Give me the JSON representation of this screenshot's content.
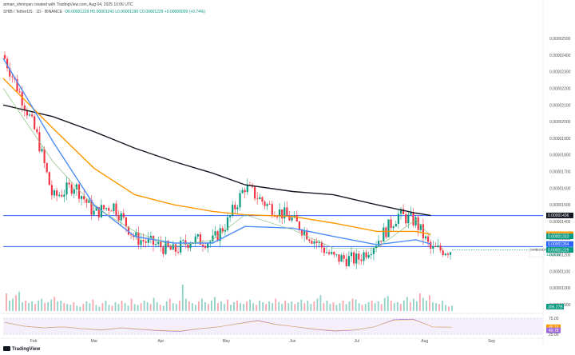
{
  "header": {
    "credit": "arman_shirinyan created with TradingView.com, Aug 04, 2025 10:06 UTC",
    "symbol": "SHIB / TetherUS · 1D · BINANCE",
    "ohlc": "O0.00001229 H0.00001243 L0.00001199 C0.00001229 +0.00000009 (+0.74%)"
  },
  "branding": {
    "text": "TradingView"
  },
  "colors": {
    "up": "#089981",
    "down": "#f23645",
    "ma_black": "#131722",
    "ma_orange": "#ff9800",
    "ma_blue": "#4e8df7",
    "ma_green": "#8bc17f",
    "hline": "#2962ff",
    "rsi": "#9c6ade",
    "rsi_band": "#ede4f8"
  },
  "chart_data": {
    "type": "candlestick",
    "price_axis_ticks": [
      "0.00002500",
      "0.00002400",
      "0.00002300",
      "0.00002200",
      "0.00002100",
      "0.00002000",
      "0.00001900",
      "0.00001800",
      "0.00001700",
      "0.00001600",
      "0.00001500",
      "0.00001400",
      "0.00001300",
      "0.00001200",
      "0.00001100",
      "0.00001000",
      "0.00000900"
    ],
    "time_axis_labels": [
      "Feb",
      "Mar",
      "Apr",
      "May",
      "Jun",
      "Jul",
      "Aug",
      "Sep"
    ],
    "rsi_axis_ticks": [
      "75.00",
      "46.74",
      "40.78",
      "25.00"
    ],
    "horizontal_lines": [
      1.435e-05,
      1.249e-05
    ],
    "price_labels": [
      {
        "text": "0.00001436",
        "value": 1.436e-05,
        "color": "#131722"
      },
      {
        "text": "0.00001323",
        "value": 1.323e-05,
        "color": "#ff9800"
      },
      {
        "text": "0.00001310",
        "value": 1.31e-05,
        "color": "#089981"
      },
      {
        "text": "0.00001264",
        "value": 1.264e-05,
        "color": "#2962ff"
      },
      {
        "text": "0.00001229",
        "value": 1.229e-05,
        "color": "#089981"
      }
    ],
    "current_price_tag": {
      "label": "SHIBUSDT",
      "countdown": "13:53:56",
      "value": 1.229e-05
    },
    "volume_label": "306.27B",
    "series": [
      {
        "name": "close",
        "y0": 2.4e-05,
        "x": [
          "2025-01-18",
          "2025-01-28",
          "2025-02-03",
          "2025-02-10",
          "2025-02-20",
          "2025-03-01",
          "2025-03-10",
          "2025-03-20",
          "2025-04-01",
          "2025-04-07",
          "2025-04-15",
          "2025-04-25",
          "2025-05-02",
          "2025-05-10",
          "2025-05-20",
          "2025-05-31",
          "2025-06-10",
          "2025-06-20",
          "2025-07-01",
          "2025-07-10",
          "2025-07-20",
          "2025-07-28",
          "2025-08-04"
        ],
        "values": [
          2.4e-05,
          2.1e-05,
          1.9e-05,
          1.54e-05,
          1.62e-05,
          1.45e-05,
          1.5e-05,
          1.3e-05,
          1.25e-05,
          1.22e-05,
          1.29e-05,
          1.28e-05,
          1.4e-05,
          1.61e-05,
          1.5e-05,
          1.42e-05,
          1.3e-05,
          1.18e-05,
          1.17e-05,
          1.28e-05,
          1.44e-05,
          1.4e-05,
          1.229e-05
        ]
      },
      {
        "name": "ma_black",
        "color": "#131722",
        "x": [
          "2025-01-18",
          "2025-02-10",
          "2025-03-01",
          "2025-03-20",
          "2025-04-07",
          "2025-04-25",
          "2025-05-10",
          "2025-06-01",
          "2025-06-20",
          "2025-07-10",
          "2025-07-28",
          "2025-08-04"
        ],
        "values": [
          2.1e-05,
          2.03e-05,
          1.94e-05,
          1.84e-05,
          1.76e-05,
          1.69e-05,
          1.62e-05,
          1.58e-05,
          1.56e-05,
          1.5e-05,
          1.45e-05,
          1.436e-05
        ]
      },
      {
        "name": "ma_orange",
        "color": "#ff9800",
        "x": [
          "2025-01-18",
          "2025-02-10",
          "2025-03-01",
          "2025-03-20",
          "2025-04-07",
          "2025-04-25",
          "2025-05-10",
          "2025-06-01",
          "2025-06-20",
          "2025-07-10",
          "2025-07-28",
          "2025-08-04"
        ],
        "values": [
          2.26e-05,
          1.96e-05,
          1.72e-05,
          1.56e-05,
          1.5e-05,
          1.46e-05,
          1.44e-05,
          1.43e-05,
          1.39e-05,
          1.34e-05,
          1.34e-05,
          1.323e-05
        ]
      },
      {
        "name": "ma_blue",
        "color": "#4e8df7",
        "x": [
          "2025-01-18",
          "2025-02-10",
          "2025-03-01",
          "2025-03-20",
          "2025-04-07",
          "2025-04-25",
          "2025-05-10",
          "2025-06-01",
          "2025-06-20",
          "2025-07-10",
          "2025-07-28",
          "2025-08-04"
        ],
        "values": [
          2.38e-05,
          1.88e-05,
          1.5e-05,
          1.31e-05,
          1.27e-05,
          1.27e-05,
          1.37e-05,
          1.36e-05,
          1.31e-05,
          1.26e-05,
          1.29e-05,
          1.264e-05
        ]
      },
      {
        "name": "ma_green",
        "color": "#8bc17f",
        "x": [
          "2025-01-18",
          "2025-02-10",
          "2025-03-01",
          "2025-03-20",
          "2025-04-07",
          "2025-04-25",
          "2025-05-10",
          "2025-06-01",
          "2025-06-20",
          "2025-07-10",
          "2025-07-28",
          "2025-08-04"
        ],
        "values": [
          2.2e-05,
          1.76e-05,
          1.49e-05,
          1.34e-05,
          1.25e-05,
          1.29e-05,
          1.44e-05,
          1.35e-05,
          1.24e-05,
          1.24e-05,
          1.41e-05,
          1.31e-05
        ]
      }
    ],
    "rsi": {
      "upper": 75,
      "lower": 25,
      "current": 46.74,
      "signal": 40.78,
      "values": [
        62,
        50,
        45,
        48,
        42,
        38,
        45,
        40,
        36,
        34,
        42,
        48,
        58,
        68,
        55,
        48,
        40,
        35,
        38,
        48,
        70,
        72,
        48,
        46.74
      ]
    },
    "volume": [
      20,
      12,
      14,
      18,
      22,
      10,
      12,
      9,
      11,
      8,
      12,
      14,
      9,
      10,
      13,
      16,
      11,
      12,
      9,
      8,
      7,
      10,
      6,
      5,
      8,
      11,
      9,
      13,
      7,
      5,
      9,
      12,
      7,
      6,
      10,
      8,
      12,
      9,
      6,
      14,
      8,
      7,
      9,
      12,
      10,
      8,
      15,
      10,
      7,
      6,
      11,
      14,
      9,
      8,
      12,
      30,
      14,
      11,
      9,
      7,
      11,
      14,
      10,
      8,
      12,
      16,
      9,
      11,
      8,
      13,
      7,
      10,
      12,
      9,
      8,
      11,
      13,
      9,
      7,
      12,
      10,
      8,
      11,
      9,
      14,
      10,
      8,
      12,
      9,
      11,
      8,
      10,
      13,
      9,
      12,
      8,
      11,
      14,
      18,
      9,
      12,
      8,
      10,
      7,
      9,
      12,
      8,
      11,
      14,
      13,
      9,
      7,
      8,
      10,
      12,
      9,
      11,
      8,
      15,
      17,
      12,
      9,
      10,
      8,
      12,
      16,
      10,
      14,
      11,
      20,
      15,
      12,
      18,
      10,
      9,
      8,
      12,
      7,
      5,
      6
    ]
  }
}
